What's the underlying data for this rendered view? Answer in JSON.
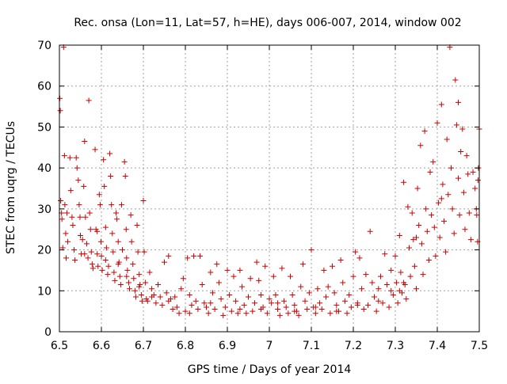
{
  "colors": {
    "series": "#cc0000",
    "grid": "#a0a0a0",
    "axis": "#000000"
  },
  "chart_data": {
    "type": "scatter",
    "title": "Rec. onsa (Lon=11, Lat=57, h=HE), days 006-007, 2014, window 002",
    "xlabel": "GPS time / Days of year 2014",
    "ylabel": "STEC from uqrg / TECUs",
    "xlim": [
      6.5,
      7.5
    ],
    "ylim": [
      0,
      70
    ],
    "xticks": [
      "6.5",
      "6.6",
      "6.7",
      "6.8",
      "6.9",
      "7",
      "7.1",
      "7.2",
      "7.3",
      "7.4",
      "7.5"
    ],
    "xtick_values": [
      6.5,
      6.6,
      6.7,
      6.8,
      6.9,
      7.0,
      7.1,
      7.2,
      7.3,
      7.4,
      7.5
    ],
    "yticks": [
      "0",
      "10",
      "20",
      "30",
      "40",
      "50",
      "60",
      "70"
    ],
    "ytick_values": [
      0,
      10,
      20,
      30,
      40,
      50,
      60,
      70
    ],
    "grid": true,
    "marker": "plus",
    "series": [
      {
        "name": "STEC",
        "points": [
          [
            6.501,
            57.0
          ],
          [
            6.502,
            54.0
          ],
          [
            6.503,
            32.0
          ],
          [
            6.505,
            29.0
          ],
          [
            6.506,
            27.5
          ],
          [
            6.508,
            20.5
          ],
          [
            6.51,
            69.5
          ],
          [
            6.512,
            43.0
          ],
          [
            6.513,
            31.0
          ],
          [
            6.515,
            24.0
          ],
          [
            6.516,
            18.0
          ],
          [
            6.518,
            29.0
          ],
          [
            6.52,
            22.0
          ],
          [
            6.525,
            42.5
          ],
          [
            6.527,
            34.5
          ],
          [
            6.53,
            28.0
          ],
          [
            6.532,
            26.0
          ],
          [
            6.535,
            20.0
          ],
          [
            6.537,
            17.5
          ],
          [
            6.54,
            42.5
          ],
          [
            6.542,
            40.0
          ],
          [
            6.545,
            37.0
          ],
          [
            6.547,
            31.0
          ],
          [
            6.549,
            28.0
          ],
          [
            6.55,
            23.5
          ],
          [
            6.552,
            19.0
          ],
          [
            6.555,
            22.5
          ],
          [
            6.558,
            35.5
          ],
          [
            6.56,
            46.5
          ],
          [
            6.562,
            28.0
          ],
          [
            6.565,
            21.5
          ],
          [
            6.568,
            18.0
          ],
          [
            6.57,
            56.5
          ],
          [
            6.572,
            29.0
          ],
          [
            6.574,
            25.0
          ],
          [
            6.576,
            19.5
          ],
          [
            6.578,
            16.5
          ],
          [
            6.58,
            15.5
          ],
          [
            6.585,
            44.5
          ],
          [
            6.587,
            25.0
          ],
          [
            6.59,
            19.0
          ],
          [
            6.592,
            16.0
          ],
          [
            6.595,
            33.5
          ],
          [
            6.597,
            31.0
          ],
          [
            6.599,
            22.0
          ],
          [
            6.6,
            18.5
          ],
          [
            6.602,
            15.0
          ],
          [
            6.605,
            42.0
          ],
          [
            6.607,
            35.5
          ],
          [
            6.61,
            25.5
          ],
          [
            6.612,
            20.5
          ],
          [
            6.615,
            14.0
          ],
          [
            6.617,
            16.0
          ],
          [
            6.62,
            43.5
          ],
          [
            6.622,
            38.0
          ],
          [
            6.624,
            31.0
          ],
          [
            6.626,
            24.0
          ],
          [
            6.628,
            19.5
          ],
          [
            6.63,
            14.5
          ],
          [
            6.632,
            12.5
          ],
          [
            6.635,
            29.0
          ],
          [
            6.637,
            27.5
          ],
          [
            6.64,
            22.0
          ],
          [
            6.642,
            17.0
          ],
          [
            6.644,
            13.5
          ],
          [
            6.646,
            11.5
          ],
          [
            6.648,
            31.0
          ],
          [
            6.65,
            20.0
          ],
          [
            6.655,
            41.5
          ],
          [
            6.657,
            38.0
          ],
          [
            6.659,
            25.0
          ],
          [
            6.66,
            18.0
          ],
          [
            6.662,
            15.0
          ],
          [
            6.665,
            12.0
          ],
          [
            6.667,
            10.5
          ],
          [
            6.67,
            28.5
          ],
          [
            6.672,
            22.0
          ],
          [
            6.675,
            16.5
          ],
          [
            6.677,
            13.0
          ],
          [
            6.68,
            10.0
          ],
          [
            6.682,
            8.5
          ],
          [
            6.685,
            26.0
          ],
          [
            6.687,
            19.5
          ],
          [
            6.69,
            14.0
          ],
          [
            6.692,
            11.5
          ],
          [
            6.695,
            9.0
          ],
          [
            6.697,
            7.5
          ],
          [
            6.7,
            32.0
          ],
          [
            6.702,
            19.5
          ],
          [
            6.705,
            12.0
          ],
          [
            6.707,
            8.0
          ],
          [
            6.71,
            7.5
          ],
          [
            6.715,
            14.5
          ],
          [
            6.72,
            10.5
          ],
          [
            6.725,
            9.0
          ],
          [
            6.73,
            7.0
          ],
          [
            6.735,
            11.5
          ],
          [
            6.74,
            8.5
          ],
          [
            6.745,
            6.5
          ],
          [
            6.75,
            17.0
          ],
          [
            6.755,
            9.5
          ],
          [
            6.76,
            18.5
          ],
          [
            6.765,
            8.0
          ],
          [
            6.77,
            5.5
          ],
          [
            6.775,
            8.5
          ],
          [
            6.78,
            6.0
          ],
          [
            6.785,
            4.5
          ],
          [
            6.79,
            10.5
          ],
          [
            6.795,
            13.0
          ],
          [
            6.8,
            5.0
          ],
          [
            6.805,
            18.0
          ],
          [
            6.81,
            9.0
          ],
          [
            6.815,
            6.5
          ],
          [
            6.82,
            18.5
          ],
          [
            6.825,
            7.5
          ],
          [
            6.83,
            5.5
          ],
          [
            6.835,
            18.5
          ],
          [
            6.84,
            11.5
          ],
          [
            6.845,
            7.0
          ],
          [
            6.85,
            6.0
          ],
          [
            6.855,
            4.5
          ],
          [
            6.86,
            14.5
          ],
          [
            6.865,
            9.5
          ],
          [
            6.87,
            5.5
          ],
          [
            6.875,
            16.5
          ],
          [
            6.88,
            12.0
          ],
          [
            6.885,
            8.0
          ],
          [
            6.89,
            4.0
          ],
          [
            6.895,
            6.0
          ],
          [
            6.9,
            15.0
          ],
          [
            6.905,
            9.0
          ],
          [
            6.91,
            5.0
          ],
          [
            6.915,
            13.5
          ],
          [
            6.92,
            7.5
          ],
          [
            6.925,
            4.5
          ],
          [
            6.93,
            15.0
          ],
          [
            6.935,
            11.0
          ],
          [
            6.94,
            6.5
          ],
          [
            6.945,
            4.5
          ],
          [
            6.95,
            8.5
          ],
          [
            6.955,
            13.0
          ],
          [
            6.96,
            5.0
          ],
          [
            6.965,
            7.0
          ],
          [
            6.97,
            17.0
          ],
          [
            6.975,
            12.5
          ],
          [
            6.98,
            9.0
          ],
          [
            6.985,
            6.0
          ],
          [
            6.99,
            16.0
          ],
          [
            6.995,
            4.5
          ],
          [
            7.0,
            8.0
          ],
          [
            7.005,
            7.0
          ],
          [
            7.01,
            13.5
          ],
          [
            7.015,
            9.0
          ],
          [
            7.02,
            5.5
          ],
          [
            7.025,
            4.0
          ],
          [
            7.03,
            15.5
          ],
          [
            7.035,
            7.5
          ],
          [
            7.04,
            6.0
          ],
          [
            7.045,
            4.5
          ],
          [
            7.05,
            13.5
          ],
          [
            7.055,
            9.0
          ],
          [
            7.06,
            6.5
          ],
          [
            7.065,
            5.0
          ],
          [
            7.07,
            4.0
          ],
          [
            7.075,
            11.0
          ],
          [
            7.08,
            16.5
          ],
          [
            7.085,
            7.5
          ],
          [
            7.09,
            5.5
          ],
          [
            7.095,
            9.5
          ],
          [
            7.1,
            20.0
          ],
          [
            7.105,
            6.0
          ],
          [
            7.11,
            4.5
          ],
          [
            7.115,
            10.5
          ],
          [
            7.12,
            7.0
          ],
          [
            7.125,
            5.5
          ],
          [
            7.13,
            15.0
          ],
          [
            7.135,
            8.5
          ],
          [
            7.14,
            11.0
          ],
          [
            7.145,
            4.5
          ],
          [
            7.15,
            16.0
          ],
          [
            7.155,
            9.5
          ],
          [
            7.16,
            6.5
          ],
          [
            7.165,
            5.0
          ],
          [
            7.17,
            17.5
          ],
          [
            7.175,
            12.0
          ],
          [
            7.18,
            7.5
          ],
          [
            7.185,
            4.5
          ],
          [
            7.19,
            9.0
          ],
          [
            7.195,
            6.0
          ],
          [
            7.2,
            13.5
          ],
          [
            7.205,
            19.5
          ],
          [
            7.21,
            7.0
          ],
          [
            7.215,
            18.0
          ],
          [
            7.22,
            10.5
          ],
          [
            7.225,
            5.5
          ],
          [
            7.23,
            14.0
          ],
          [
            7.235,
            6.5
          ],
          [
            7.24,
            24.5
          ],
          [
            7.245,
            12.0
          ],
          [
            7.25,
            8.5
          ],
          [
            7.255,
            5.0
          ],
          [
            7.26,
            10.5
          ],
          [
            7.265,
            13.5
          ],
          [
            7.27,
            7.0
          ],
          [
            7.275,
            19.0
          ],
          [
            7.28,
            11.5
          ],
          [
            7.285,
            6.0
          ],
          [
            7.29,
            15.0
          ],
          [
            7.295,
            9.0
          ],
          [
            7.3,
            18.5
          ],
          [
            7.303,
            12.0
          ],
          [
            7.306,
            7.0
          ],
          [
            7.31,
            23.5
          ],
          [
            7.313,
            14.5
          ],
          [
            7.316,
            9.5
          ],
          [
            7.32,
            36.5
          ],
          [
            7.323,
            11.5
          ],
          [
            7.326,
            8.0
          ],
          [
            7.33,
            30.5
          ],
          [
            7.333,
            20.5
          ],
          [
            7.336,
            13.5
          ],
          [
            7.34,
            29.0
          ],
          [
            7.343,
            22.5
          ],
          [
            7.346,
            16.0
          ],
          [
            7.35,
            10.5
          ],
          [
            7.353,
            35.0
          ],
          [
            7.356,
            26.0
          ],
          [
            7.36,
            45.5
          ],
          [
            7.363,
            21.5
          ],
          [
            7.366,
            14.0
          ],
          [
            7.37,
            49.0
          ],
          [
            7.373,
            30.0
          ],
          [
            7.376,
            24.5
          ],
          [
            7.38,
            17.5
          ],
          [
            7.383,
            39.0
          ],
          [
            7.386,
            28.5
          ],
          [
            7.39,
            41.5
          ],
          [
            7.393,
            25.5
          ],
          [
            7.396,
            18.5
          ],
          [
            7.4,
            51.0
          ],
          [
            7.403,
            31.5
          ],
          [
            7.406,
            23.0
          ],
          [
            7.41,
            55.5
          ],
          [
            7.413,
            36.0
          ],
          [
            7.416,
            27.0
          ],
          [
            7.42,
            19.5
          ],
          [
            7.423,
            47.0
          ],
          [
            7.426,
            33.5
          ],
          [
            7.43,
            69.5
          ],
          [
            7.433,
            40.0
          ],
          [
            7.436,
            30.0
          ],
          [
            7.44,
            24.0
          ],
          [
            7.443,
            61.5
          ],
          [
            7.446,
            50.5
          ],
          [
            7.45,
            37.5
          ],
          [
            7.453,
            28.5
          ],
          [
            7.456,
            44.0
          ],
          [
            7.46,
            49.5
          ],
          [
            7.463,
            34.0
          ],
          [
            7.466,
            25.0
          ],
          [
            7.47,
            43.0
          ],
          [
            7.473,
            38.5
          ],
          [
            7.476,
            29.0
          ],
          [
            7.48,
            22.5
          ],
          [
            7.485,
            39.0
          ],
          [
            7.49,
            35.0
          ],
          [
            7.493,
            30.0
          ],
          [
            7.496,
            22.0
          ],
          [
            7.5,
            49.5
          ],
          [
            7.498,
            40.0
          ],
          [
            7.497,
            37.0
          ],
          [
            7.494,
            28.5
          ],
          [
            7.45,
            56.0
          ],
          [
            7.41,
            32.5
          ],
          [
            7.35,
            23.0
          ],
          [
            7.32,
            12.0
          ],
          [
            6.56,
            19.0
          ],
          [
            6.59,
            24.5
          ],
          [
            6.61,
            17.5
          ],
          [
            6.64,
            16.5
          ],
          [
            6.66,
            13.5
          ],
          [
            6.69,
            11.0
          ],
          [
            6.72,
            8.5
          ],
          [
            6.76,
            7.5
          ],
          [
            6.81,
            4.5
          ],
          [
            6.86,
            7.0
          ],
          [
            6.93,
            5.5
          ],
          [
            6.98,
            5.5
          ],
          [
            7.02,
            7.0
          ],
          [
            7.06,
            5.0
          ],
          [
            7.11,
            6.0
          ],
          [
            7.16,
            5.0
          ],
          [
            7.21,
            6.5
          ],
          [
            7.26,
            7.5
          ],
          [
            7.29,
            10.0
          ],
          [
            7.31,
            10.0
          ]
        ]
      }
    ]
  }
}
